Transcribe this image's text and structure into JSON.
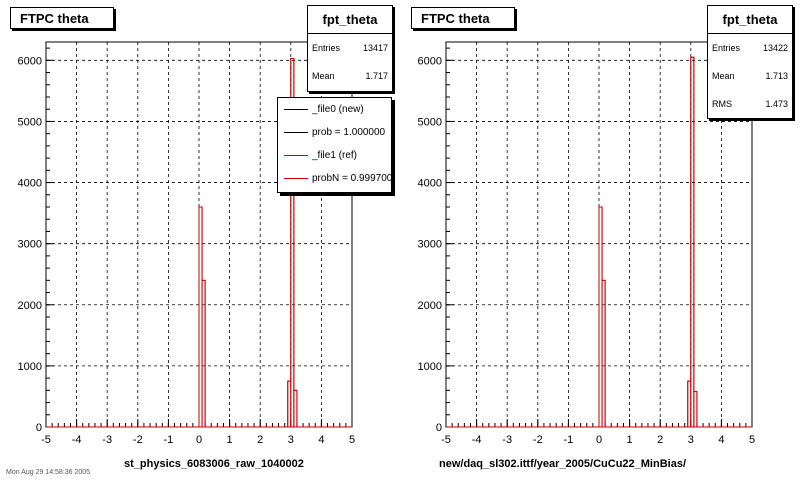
{
  "footer_text": "Mon Aug 29 14:58:36 2005",
  "chart_data": [
    {
      "type": "bar",
      "title": "FTPC theta",
      "xlabel": "st_physics_6083006_raw_1040002",
      "ylabel": "",
      "xlim": [
        -5,
        5
      ],
      "ylim": [
        0,
        6300
      ],
      "xticks": [
        "-5",
        "-4",
        "-3",
        "-2",
        "-1",
        "0",
        "1",
        "2",
        "3",
        "4",
        "5"
      ],
      "yticks": [
        "0",
        "1000",
        "2000",
        "3000",
        "4000",
        "5000",
        "6000"
      ],
      "grid": true,
      "stats": {
        "title": "fpt_theta",
        "rows": [
          {
            "label": "Entries",
            "value": "13417"
          },
          {
            "label": "Mean",
            "value": "1.717"
          }
        ]
      },
      "legend": {
        "placement": "top-right",
        "entries": [
          {
            "label": "_file0 (new)",
            "color": "#000000"
          },
          {
            "label": "prob = 1.000000",
            "color": "#000000"
          },
          {
            "label": "_file1 (ref)",
            "color": "#cc0000"
          },
          {
            "label": "probN = 0.999700",
            "color": "#cc0000"
          }
        ]
      },
      "series": [
        {
          "color": "#cc0000",
          "bin_width": 0.1,
          "bins": [
            {
              "x": 0.0,
              "y": 3600
            },
            {
              "x": 0.1,
              "y": 2400
            },
            {
              "x": 2.9,
              "y": 750
            },
            {
              "x": 3.0,
              "y": 6030
            },
            {
              "x": 3.1,
              "y": 600
            }
          ]
        }
      ]
    },
    {
      "type": "bar",
      "title": "FTPC theta",
      "xlabel": "new/daq_sl302.ittf/year_2005/CuCu22_MinBias/",
      "ylabel": "",
      "xlim": [
        -5,
        5
      ],
      "ylim": [
        0,
        6300
      ],
      "xticks": [
        "-5",
        "-4",
        "-3",
        "-2",
        "-1",
        "0",
        "1",
        "2",
        "3",
        "4",
        "5"
      ],
      "yticks": [
        "0",
        "1000",
        "2000",
        "3000",
        "4000",
        "5000",
        "6000"
      ],
      "grid": true,
      "stats": {
        "title": "fpt_theta",
        "rows": [
          {
            "label": "Entries",
            "value": "13422"
          },
          {
            "label": "Mean",
            "value": "1.713"
          },
          {
            "label": "RMS",
            "value": "1.473"
          }
        ]
      },
      "series": [
        {
          "color": "#cc0000",
          "bin_width": 0.1,
          "bins": [
            {
              "x": 0.0,
              "y": 3600
            },
            {
              "x": 0.1,
              "y": 2400
            },
            {
              "x": 2.9,
              "y": 750
            },
            {
              "x": 3.0,
              "y": 6050
            },
            {
              "x": 3.1,
              "y": 580
            }
          ]
        }
      ]
    }
  ]
}
